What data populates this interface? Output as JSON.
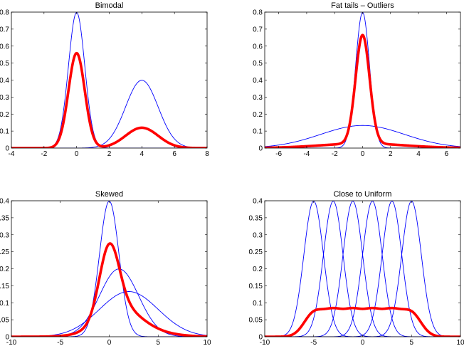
{
  "colors": {
    "component": "#0000ff",
    "mixture": "#ff0000",
    "axes": "#000000",
    "background": "#ffffff"
  },
  "chart_data": [
    {
      "type": "line",
      "title": "Bimodal",
      "xlim": [
        -4,
        8
      ],
      "ylim": [
        0,
        0.8
      ],
      "xticks": [
        -4,
        -2,
        0,
        2,
        4,
        6,
        8
      ],
      "yticks": [
        0,
        0.1,
        0.2,
        0.3,
        0.4,
        0.5,
        0.6,
        0.7,
        0.8
      ],
      "grid": false,
      "series": [
        {
          "role": "component",
          "mean": 0,
          "std": 0.5,
          "weight": 1
        },
        {
          "role": "component",
          "mean": 4,
          "std": 1.0,
          "weight": 1
        },
        {
          "role": "mixture",
          "components": [
            {
              "mean": 0,
              "std": 0.5,
              "weight": 0.7
            },
            {
              "mean": 4,
              "std": 1.0,
              "weight": 0.3
            }
          ]
        }
      ]
    },
    {
      "type": "line",
      "title": "Fat tails – Outliers",
      "xlim": [
        -7,
        7
      ],
      "ylim": [
        0,
        0.8
      ],
      "xticks": [
        -6,
        -4,
        -2,
        0,
        2,
        4,
        6
      ],
      "yticks": [
        0,
        0.1,
        0.2,
        0.3,
        0.4,
        0.5,
        0.6,
        0.7,
        0.8
      ],
      "grid": false,
      "series": [
        {
          "role": "component",
          "mean": 0,
          "std": 0.5,
          "weight": 1
        },
        {
          "role": "component",
          "mean": 0,
          "std": 3.0,
          "weight": 1
        },
        {
          "role": "mixture",
          "components": [
            {
              "mean": 0,
              "std": 0.5,
              "weight": 0.8
            },
            {
              "mean": 0,
              "std": 3.0,
              "weight": 0.2
            }
          ]
        }
      ]
    },
    {
      "type": "line",
      "title": "Skewed",
      "xlim": [
        -10,
        10
      ],
      "ylim": [
        0,
        0.4
      ],
      "xticks": [
        -10,
        -5,
        0,
        5,
        10
      ],
      "yticks": [
        0,
        0.05,
        0.1,
        0.15,
        0.2,
        0.25,
        0.3,
        0.35,
        0.4
      ],
      "grid": false,
      "series": [
        {
          "role": "component",
          "mean": 0,
          "std": 1.0,
          "weight": 1
        },
        {
          "role": "component",
          "mean": 1,
          "std": 2.0,
          "weight": 1
        },
        {
          "role": "component",
          "mean": 2,
          "std": 3.0,
          "weight": 1
        },
        {
          "role": "mixture",
          "components": [
            {
              "mean": 0,
              "std": 1.0,
              "weight": 0.5
            },
            {
              "mean": 1,
              "std": 2.0,
              "weight": 0.3
            },
            {
              "mean": 2,
              "std": 3.0,
              "weight": 0.2
            }
          ]
        }
      ]
    },
    {
      "type": "line",
      "title": "Close to Uniform",
      "xlim": [
        -10,
        10
      ],
      "ylim": [
        0,
        0.4
      ],
      "xticks": [
        -10,
        -5,
        0,
        5,
        10
      ],
      "yticks": [
        0,
        0.05,
        0.1,
        0.15,
        0.2,
        0.25,
        0.3,
        0.35,
        0.4
      ],
      "grid": false,
      "series": [
        {
          "role": "component",
          "mean": -5,
          "std": 1.0,
          "weight": 1
        },
        {
          "role": "component",
          "mean": -3,
          "std": 1.0,
          "weight": 1
        },
        {
          "role": "component",
          "mean": -1,
          "std": 1.0,
          "weight": 1
        },
        {
          "role": "component",
          "mean": 1,
          "std": 1.0,
          "weight": 1
        },
        {
          "role": "component",
          "mean": 3,
          "std": 1.0,
          "weight": 1
        },
        {
          "role": "component",
          "mean": 5,
          "std": 1.0,
          "weight": 1
        },
        {
          "role": "mixture",
          "components": [
            {
              "mean": -5,
              "std": 1.0,
              "weight": 0.1667
            },
            {
              "mean": -3,
              "std": 1.0,
              "weight": 0.1667
            },
            {
              "mean": -1,
              "std": 1.0,
              "weight": 0.1667
            },
            {
              "mean": 1,
              "std": 1.0,
              "weight": 0.1667
            },
            {
              "mean": 3,
              "std": 1.0,
              "weight": 0.1667
            },
            {
              "mean": 5,
              "std": 1.0,
              "weight": 0.1667
            }
          ]
        }
      ]
    }
  ]
}
